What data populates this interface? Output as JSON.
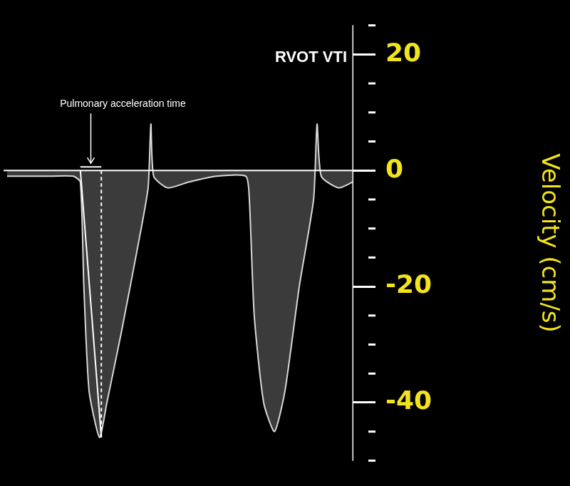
{
  "chart_data": {
    "type": "line",
    "title": "RVOT VTI",
    "y_label": "Velocity (cm/s)",
    "x": [
      1,
      12,
      20,
      22,
      23,
      24.5,
      27.5,
      29.6,
      33.7,
      38.8,
      41.4,
      42.2,
      43,
      47,
      53,
      61,
      69.4,
      70.4,
      71.8,
      74.5,
      77.6,
      80.6,
      84.7,
      88.8,
      89.8,
      91,
      96,
      100
    ],
    "values": [
      -1,
      -1,
      -1,
      -2,
      -20,
      -38,
      -46,
      -40,
      -28,
      -12,
      -3,
      8,
      -1,
      -3,
      -2,
      -1,
      -1,
      -5,
      -25,
      -40,
      -45,
      -38,
      -20,
      -5,
      8,
      -1,
      -3,
      -2
    ],
    "color": "#d9d9d9",
    "xlim": [
      0,
      100
    ],
    "ylim": [
      -50,
      25
    ],
    "yticks": [
      -40,
      -20,
      0,
      20
    ],
    "grid": false,
    "tick_labels": "y",
    "annotations": [
      {
        "text": "Pulmonary acceleration time",
        "x_start": 22,
        "x_end": 28,
        "velocity": -46
      }
    ]
  }
}
